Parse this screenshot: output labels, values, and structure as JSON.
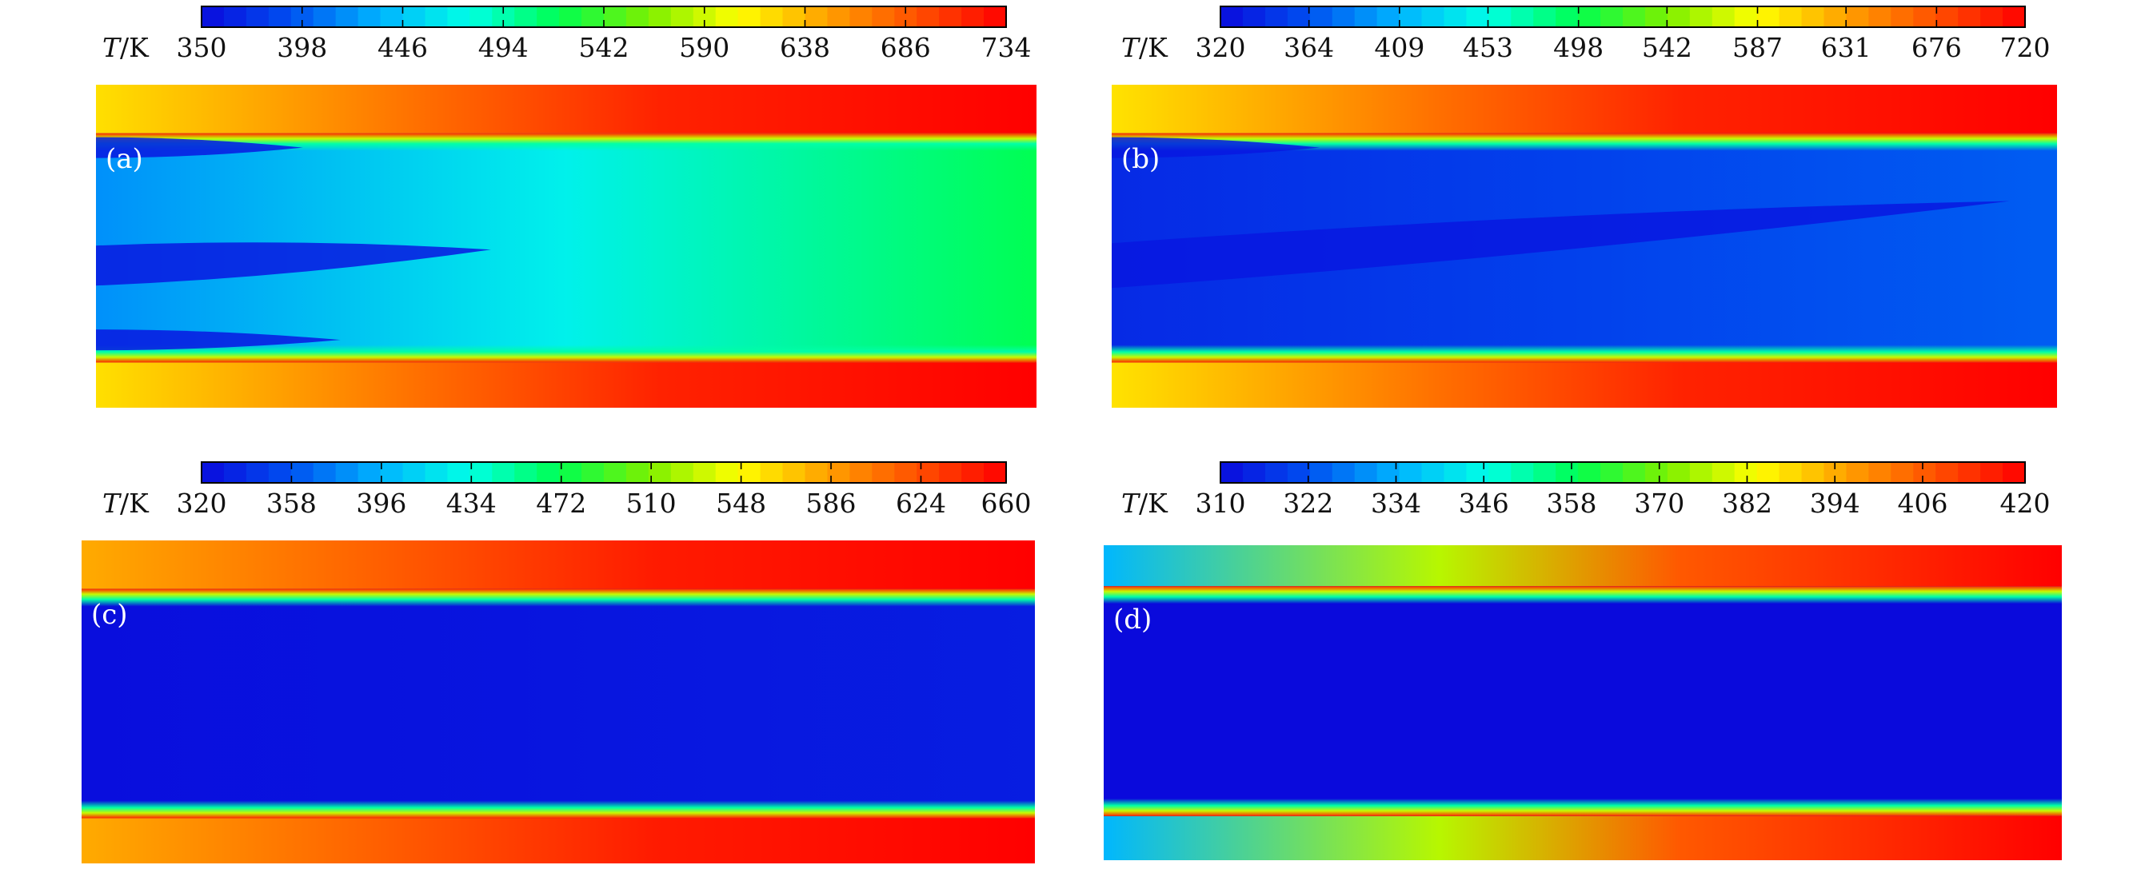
{
  "colors": {
    "colormap": [
      "#0a0adc",
      "#0050f0",
      "#00b4ff",
      "#00ffe6",
      "#00ff50",
      "#7cf000",
      "#ffff00",
      "#ffa000",
      "#ff5000",
      "#ff0000"
    ],
    "background": "#ffffff"
  },
  "chart_data": [
    {
      "type": "heatmap",
      "panel_label": "(a)",
      "colorbar": {
        "variable": "T",
        "unit": "K",
        "ticks": [
          350,
          398,
          446,
          494,
          542,
          590,
          638,
          686,
          734
        ],
        "range": [
          350,
          734
        ]
      },
      "field": {
        "wall_temperature": {
          "inlet": 620,
          "outlet": 734
        },
        "core_temperature": {
          "inlet": 420,
          "outlet": 520
        },
        "cold_jets": [
          "upper-wall",
          "center",
          "lower-center"
        ]
      }
    },
    {
      "type": "heatmap",
      "panel_label": "(b)",
      "colorbar": {
        "variable": "T",
        "unit": "K",
        "ticks": [
          320,
          364,
          409,
          453,
          498,
          542,
          587,
          631,
          676,
          720
        ],
        "range": [
          320,
          720
        ]
      },
      "field": {
        "wall_temperature": {
          "inlet": 600,
          "outlet": 720
        },
        "core_temperature": {
          "inlet": 340,
          "outlet": 370
        },
        "cold_jets": [
          "upper-wall",
          "center"
        ]
      }
    },
    {
      "type": "heatmap",
      "panel_label": "(c)",
      "colorbar": {
        "variable": "T",
        "unit": "K",
        "ticks": [
          320,
          358,
          396,
          434,
          472,
          510,
          548,
          586,
          624,
          660
        ],
        "range": [
          320,
          660
        ]
      },
      "field": {
        "wall_temperature": {
          "inlet": 580,
          "outlet": 660
        },
        "core_temperature": {
          "inlet": 322,
          "outlet": 330
        },
        "cold_jets": []
      }
    },
    {
      "type": "heatmap",
      "panel_label": "(d)",
      "colorbar": {
        "variable": "T",
        "unit": "K",
        "ticks": [
          310,
          322,
          334,
          346,
          358,
          370,
          382,
          394,
          406,
          420
        ],
        "range": [
          310,
          420
        ]
      },
      "field": {
        "wall_temperature": {
          "inlet": 335,
          "outlet": 420
        },
        "core_temperature": {
          "inlet": 310,
          "outlet": 310
        },
        "cold_jets": []
      }
    }
  ]
}
